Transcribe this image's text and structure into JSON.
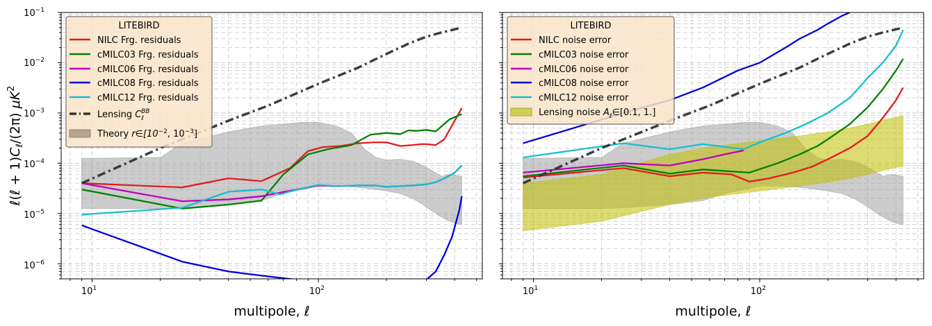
{
  "chart_data": [
    {
      "type": "line",
      "xscale": "log",
      "yscale": "log",
      "xlim": [
        7.3,
        530
      ],
      "ylim": [
        5e-07,
        0.1
      ],
      "xlabel": "multipole, ℓ",
      "ylabel": "ℓ(ℓ + 1)Cℓ/(2π)  μK²",
      "x_ticks": [
        "10¹",
        "10²"
      ],
      "y_ticks": [
        "10⁻⁶",
        "10⁻⁵",
        "10⁻⁴",
        "10⁻³",
        "10⁻²",
        "10⁻¹"
      ],
      "grid": true,
      "legend": {
        "title": "LITEBIRD",
        "position": "upper-left",
        "entries": [
          "NILC Frg. residuals",
          "cMILC03 Frg. residuals",
          "cMILC06 Frg. residuals",
          "cMILC08 Frg. residuals",
          "cMILC12 Frg. residuals",
          "Lensing C_ℓ^BB",
          "Theory r∈[10⁻², 10⁻³]"
        ]
      },
      "series": [
        {
          "name": "NILC Frg. residuals",
          "color": "#e41a1c",
          "x": [
            9,
            25,
            40,
            56,
            75,
            90,
            105,
            125,
            150,
            175,
            200,
            230,
            260,
            285,
            300,
            330,
            360,
            400,
            430
          ],
          "y": [
            4e-05,
            3.3e-05,
            5e-05,
            4.4e-05,
            8e-05,
            0.000175,
            0.00021,
            0.00022,
            0.00025,
            0.00026,
            0.00026,
            0.00022,
            0.00023,
            0.00024,
            0.00024,
            0.00023,
            0.0003,
            0.0007,
            0.00125
          ]
        },
        {
          "name": "cMILC03 Frg. residuals",
          "color": "#008000",
          "x": [
            9,
            25,
            40,
            56,
            70,
            90,
            110,
            140,
            170,
            200,
            230,
            250,
            270,
            300,
            330,
            380,
            430
          ],
          "y": [
            3e-05,
            1.25e-05,
            1.5e-05,
            1.8e-05,
            6e-05,
            0.00015,
            0.00019,
            0.00023,
            0.00037,
            0.0004,
            0.00038,
            0.00045,
            0.00044,
            0.00046,
            0.00043,
            0.00075,
            0.00095
          ]
        },
        {
          "name": "cMILC06 Frg. residuals",
          "color": "#bf00bf",
          "x": [
            9,
            25,
            40,
            56,
            80,
            100,
            120,
            150,
            180,
            200,
            230,
            260,
            300,
            330,
            360,
            400,
            430
          ],
          "y": [
            4e-05,
            1.75e-05,
            1.9e-05,
            2.2e-05,
            3e-05,
            3.6e-05,
            3.5e-05,
            3.6e-05,
            3.6e-05,
            3.4e-05,
            3.5e-05,
            3.6e-05,
            3.8e-05,
            4.2e-05,
            5e-05,
            6.5e-05,
            9e-05
          ]
        },
        {
          "name": "cMILC08 Frg. residuals",
          "color": "#0000dd",
          "x": [
            9,
            25,
            40,
            56,
            80,
            300,
            330,
            360,
            390,
            420,
            430
          ],
          "y": [
            5.8e-06,
            1.1e-06,
            7e-07,
            5.8e-07,
            4.8e-07,
            4.8e-07,
            7e-07,
            1.5e-06,
            3.5e-06,
            1.2e-05,
            2.2e-05
          ]
        },
        {
          "name": "cMILC12 Frg. residuals",
          "color": "#17becf",
          "x": [
            9,
            25,
            40,
            56,
            68,
            80,
            100,
            120,
            150,
            180,
            200,
            230,
            260,
            300,
            330,
            360,
            400,
            430
          ],
          "y": [
            9.5e-06,
            1.3e-05,
            2.7e-05,
            3e-05,
            2.4e-05,
            3e-05,
            3.7e-05,
            3.5e-05,
            3.6e-05,
            3.6e-05,
            3.4e-05,
            3.5e-05,
            3.6e-05,
            3.8e-05,
            4.2e-05,
            5e-05,
            6.5e-05,
            9e-05
          ]
        },
        {
          "name": "Lensing C_ℓ^BB",
          "color": "#333333",
          "dash": "dashdot",
          "x": [
            9,
            20,
            40,
            60,
            100,
            150,
            200,
            250,
            300,
            350,
            430
          ],
          "y": [
            4e-05,
            0.0002,
            0.0007,
            0.0014,
            0.0038,
            0.008,
            0.015,
            0.024,
            0.033,
            0.04,
            0.05
          ]
        }
      ],
      "band": {
        "name": "Theory r∈[10⁻², 10⁻³]",
        "color": "#999999",
        "opacity": 0.5,
        "x": [
          9,
          20,
          25,
          40,
          56,
          70,
          85,
          100,
          120,
          140,
          160,
          180,
          200,
          230,
          260,
          290,
          320,
          350,
          380,
          400,
          430
        ],
        "upper": [
          0.000125,
          0.00013,
          0.00025,
          0.00042,
          0.00055,
          0.0006,
          0.00065,
          0.00065,
          0.00055,
          0.0004,
          0.00019,
          0.00013,
          0.000115,
          0.00012,
          0.00011,
          9e-05,
          7e-05,
          5.5e-05,
          6e-05,
          5.8e-05,
          5.5e-05
        ],
        "lower": [
          1.25e-05,
          1.25e-05,
          1.3e-05,
          1.5e-05,
          1.8e-05,
          2.5e-05,
          3e-05,
          3.5e-05,
          3.5e-05,
          3.4e-05,
          3.2e-05,
          3e-05,
          2.8e-05,
          2.5e-05,
          2e-05,
          1.5e-05,
          1.1e-05,
          8.5e-06,
          7e-06,
          6.5e-06,
          6e-06
        ]
      }
    },
    {
      "type": "line",
      "xscale": "log",
      "yscale": "log",
      "xlim": [
        7.3,
        530
      ],
      "ylim": [
        5e-07,
        0.1
      ],
      "xlabel": "multipole, ℓ",
      "x_ticks": [
        "10¹",
        "10²"
      ],
      "grid": true,
      "legend": {
        "title": "LITEBIRD",
        "position": "upper-left",
        "entries": [
          "NILC noise error",
          "cMILC03 noise error",
          "cMILC06 noise error",
          "cMILC08 noise error",
          "cMILC12 noise error",
          "Lensing noise Aℓ∈[0.1, 1.]"
        ]
      },
      "series": [
        {
          "name": "NILC noise error",
          "color": "#e41a1c",
          "x": [
            9,
            25,
            40,
            56,
            75,
            90,
            110,
            140,
            170,
            200,
            250,
            300,
            350,
            400,
            430
          ],
          "y": [
            5.2e-05,
            8e-05,
            5.5e-05,
            6.5e-05,
            6e-05,
            4.3e-05,
            5e-05,
            6.5e-05,
            8.5e-05,
            0.00012,
            0.0002,
            0.00035,
            0.0008,
            0.0018,
            0.0032
          ]
        },
        {
          "name": "cMILC03 noise error",
          "color": "#008000",
          "x": [
            9,
            25,
            40,
            56,
            90,
            120,
            150,
            180,
            200,
            250,
            300,
            350,
            400,
            430
          ],
          "y": [
            5.5e-05,
            9e-05,
            6.2e-05,
            7.5e-05,
            6.5e-05,
            0.0001,
            0.00015,
            0.00022,
            0.0003,
            0.0006,
            0.0013,
            0.003,
            0.007,
            0.012
          ]
        },
        {
          "name": "cMILC06 noise error",
          "color": "#bf00bf",
          "x": [
            9,
            25,
            40,
            56,
            70,
            85
          ],
          "y": [
            6.5e-05,
            0.0001,
            9e-05,
            0.00012,
            0.00015,
            0.00018
          ]
        },
        {
          "name": "cMILC08 noise error",
          "color": "#0000dd",
          "x": [
            9,
            25,
            40,
            56,
            80,
            100,
            130,
            150,
            180,
            200,
            230,
            250
          ],
          "y": [
            0.00025,
            0.001,
            0.0018,
            0.0032,
            0.007,
            0.01,
            0.02,
            0.03,
            0.045,
            0.06,
            0.085,
            0.1
          ]
        },
        {
          "name": "cMILC12 noise error",
          "color": "#17becf",
          "x": [
            9,
            25,
            40,
            56,
            85,
            100,
            130,
            160,
            200,
            250,
            300,
            350,
            400,
            430
          ],
          "y": [
            0.00013,
            0.00025,
            0.00019,
            0.00024,
            0.00019,
            0.00026,
            0.0004,
            0.0006,
            0.001,
            0.002,
            0.005,
            0.01,
            0.022,
            0.045
          ]
        },
        {
          "name": "Lensing",
          "color": "#333333",
          "dash": "dashdot",
          "x": [
            9,
            20,
            40,
            60,
            100,
            150,
            200,
            250,
            300,
            350,
            430
          ],
          "y": [
            4e-05,
            0.0002,
            0.0007,
            0.0014,
            0.0038,
            0.008,
            0.015,
            0.024,
            0.033,
            0.04,
            0.05
          ]
        }
      ],
      "bands": [
        {
          "name": "theory",
          "color": "#999999",
          "opacity": 0.5,
          "x": [
            9,
            20,
            25,
            40,
            56,
            70,
            85,
            100,
            120,
            140,
            160,
            180,
            200,
            230,
            260,
            290,
            320,
            350,
            380,
            400,
            430
          ],
          "upper": [
            0.000125,
            0.00013,
            0.00025,
            0.00042,
            0.00055,
            0.0006,
            0.00065,
            0.00065,
            0.00055,
            0.0004,
            0.00019,
            0.00013,
            0.000115,
            0.00012,
            0.00011,
            9e-05,
            7e-05,
            5.5e-05,
            6e-05,
            5.8e-05,
            5.5e-05
          ],
          "lower": [
            1.25e-05,
            1.25e-05,
            1.3e-05,
            1.5e-05,
            1.8e-05,
            2.5e-05,
            3e-05,
            3.5e-05,
            3.5e-05,
            3.4e-05,
            3.2e-05,
            3e-05,
            2.8e-05,
            2.5e-05,
            2e-05,
            1.5e-05,
            1.1e-05,
            8.5e-06,
            7e-06,
            6.5e-06,
            6e-06
          ]
        },
        {
          "name": "Lensing noise Aℓ∈[0.1, 1.]",
          "color": "#bfbf00",
          "opacity": 0.55,
          "x": [
            9,
            20,
            40,
            60,
            100,
            150,
            200,
            250,
            300,
            350,
            430
          ],
          "upper": [
            4e-05,
            6e-05,
            0.00015,
            0.00021,
            0.00028,
            0.00035,
            0.00042,
            0.0005,
            0.0006,
            0.00072,
            0.00088
          ],
          "lower": [
            4.5e-06,
            7e-06,
            1.5e-05,
            2.1e-05,
            2.8e-05,
            3.5e-05,
            4.2e-05,
            5e-05,
            6e-05,
            7.2e-05,
            8.8e-05
          ]
        }
      ]
    }
  ],
  "legend_left": {
    "title": "LITEBIRD",
    "items": [
      "NILC Frg. residuals",
      "cMILC03 Frg. residuals",
      "cMILC06 Frg. residuals",
      "cMILC08 Frg. residuals",
      "cMILC12 Frg. residuals"
    ],
    "lensing_prefix": "Lensing ",
    "lensing_sym": "C",
    "lensing_sub": "ℓ",
    "lensing_sup": "BB",
    "theory_prefix": "Theory ",
    "theory_math": "r∈[10",
    "theory_e1": "−2",
    "theory_mid": ", 10",
    "theory_e2": "−3",
    "theory_end": "]"
  },
  "legend_right": {
    "title": "LITEBIRD",
    "items": [
      "NILC noise error",
      "cMILC03 noise error",
      "cMILC06 noise error",
      "cMILC08 noise error",
      "cMILC12 noise error"
    ],
    "lensing_prefix": "Lensing noise ",
    "lensing_sym": "A",
    "lensing_sub": "ℓ",
    "lensing_range": "∈[0.1, 1.]"
  },
  "xtick_labels": {
    "t1_base": "10",
    "t1_exp": "1",
    "t2_base": "10",
    "t2_exp": "2"
  },
  "ytick_labels": {
    "base": "10",
    "exps": [
      "−6",
      "−5",
      "−4",
      "−3",
      "−2",
      "−1"
    ]
  },
  "ylabel_parts": {
    "pre": "ℓ(ℓ + 1)",
    "C": "C",
    "sub": "ℓ",
    "post": "/(2π)  ",
    "mu": "μK",
    "sq": "2"
  },
  "xlabel_parts": {
    "text": "multipole, ",
    "ell": "ℓ"
  }
}
